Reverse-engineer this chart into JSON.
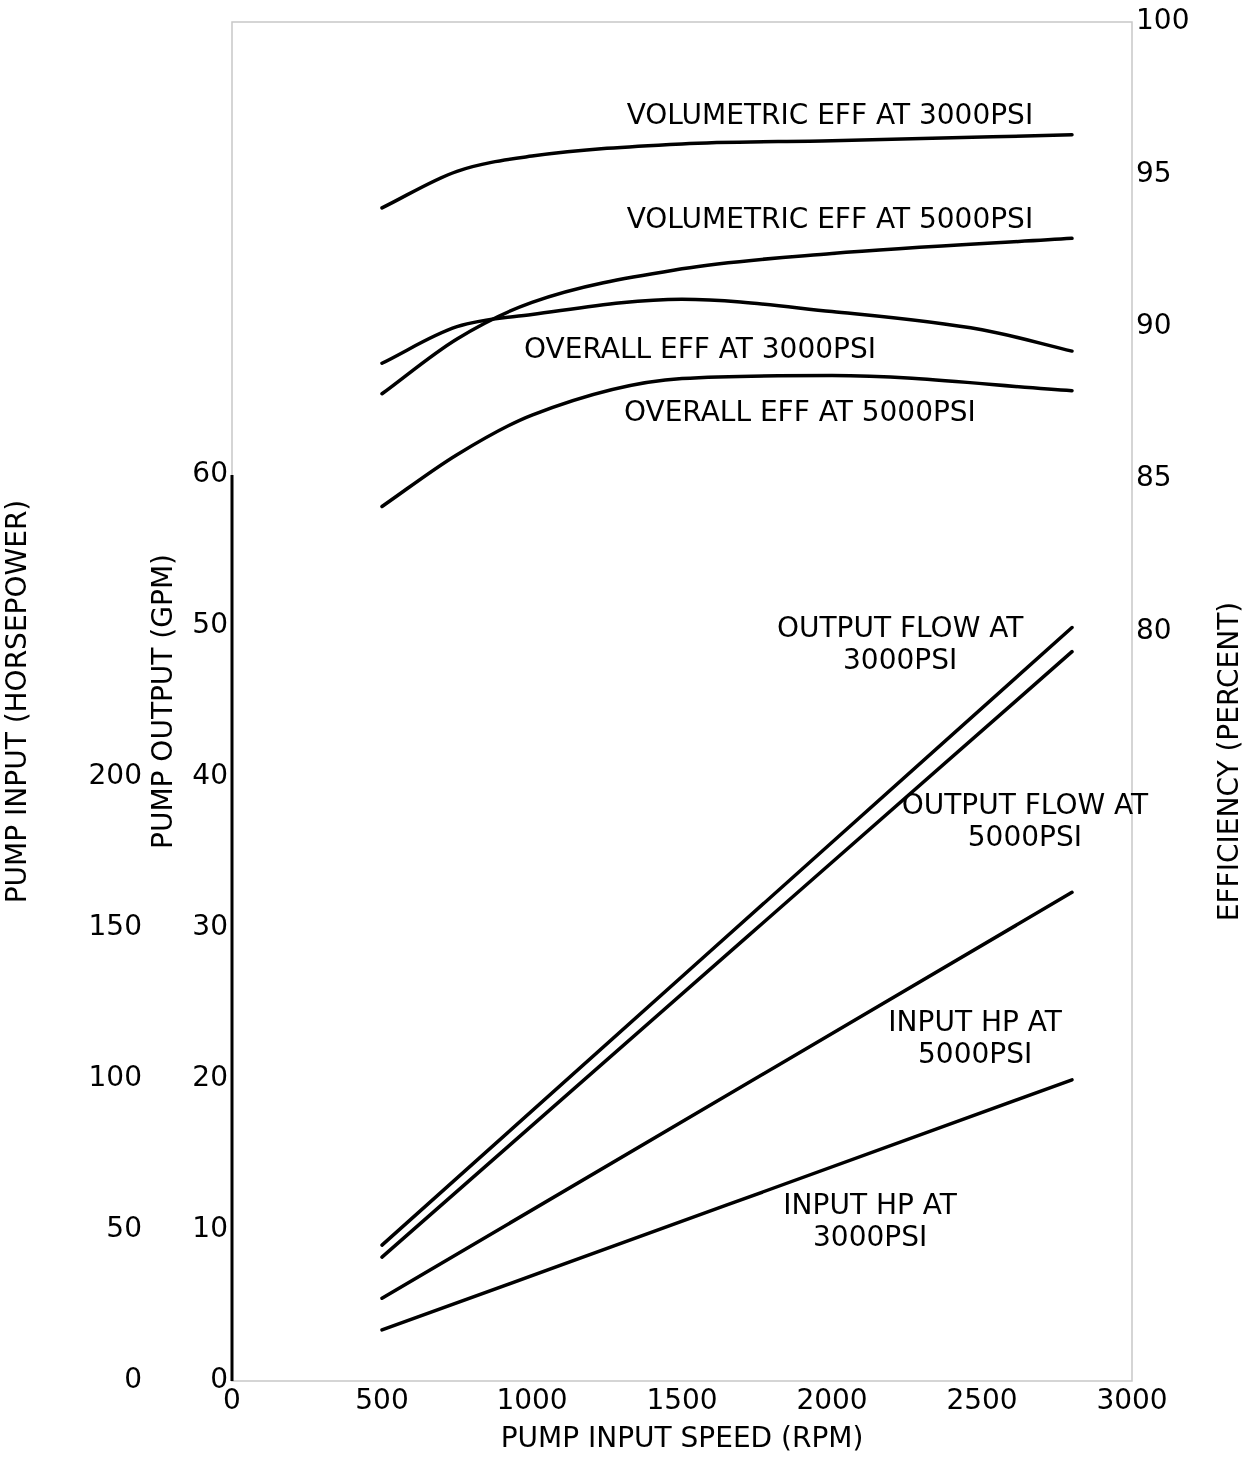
{
  "chart_data": {
    "type": "line",
    "xlabel": "PUMP INPUT SPEED (RPM)",
    "ylabel": "PUMP OUTPUT (GPM)",
    "y2label": "EFFICIENCY (PERCENT)",
    "y3label": "PUMP INPUT (HORSEPOWER)",
    "xlim": [
      0,
      3000
    ],
    "xticks": [
      0,
      500,
      1000,
      1500,
      2000,
      2500,
      3000
    ],
    "ylim": [
      0,
      90
    ],
    "yticks": [
      0,
      10,
      20,
      30,
      40,
      50,
      60
    ],
    "y2lim": [
      55.4,
      100
    ],
    "y2ticks": [
      80,
      85,
      90,
      95,
      100
    ],
    "y3lim": [
      0,
      450
    ],
    "y3ticks": [
      0,
      50,
      100,
      150,
      200
    ],
    "grid": false,
    "legend": false,
    "marker": "none",
    "line_style": "solid",
    "series": [
      {
        "name": "VOLUMETRIC EFF AT 3000PSI",
        "color": "#000000",
        "axis": "y2",
        "x": [
          500,
          750,
          1000,
          1500,
          2000,
          2800
        ],
        "values": [
          93.9,
          95.1,
          95.6,
          96.0,
          96.1,
          96.3
        ]
      },
      {
        "name": "VOLUMETRIC EFF AT 5000PSI",
        "color": "#000000",
        "axis": "y2",
        "x": [
          500,
          750,
          1000,
          1500,
          2000,
          2800
        ],
        "values": [
          87.8,
          89.6,
          90.8,
          91.9,
          92.4,
          92.9
        ]
      },
      {
        "name": "OVERALL EFF AT 3000PSI",
        "color": "#000000",
        "axis": "y2",
        "x": [
          500,
          750,
          1000,
          1500,
          2000,
          2500,
          2800
        ],
        "values": [
          88.8,
          90.0,
          90.4,
          90.9,
          90.5,
          89.9,
          89.2
        ]
      },
      {
        "name": "OVERALL EFF AT 5000PSI",
        "color": "#000000",
        "axis": "y2",
        "x": [
          500,
          750,
          1000,
          1500,
          2000,
          2800
        ],
        "values": [
          84.1,
          85.8,
          87.1,
          88.3,
          88.4,
          87.9
        ]
      },
      {
        "name": "OUTPUT FLOW AT 3000PSI",
        "color": "#000000",
        "x": [
          500,
          2800
        ],
        "values": [
          9.0,
          49.9
        ]
      },
      {
        "name": "OUTPUT FLOW AT 5000PSI",
        "color": "#000000",
        "x": [
          500,
          2800
        ],
        "values": [
          8.2,
          48.3
        ]
      },
      {
        "name": "INPUT HP AT 5000PSI",
        "color": "#000000",
        "axis": "y3",
        "x": [
          500,
          2800
        ],
        "values": [
          27.4,
          161.8
        ]
      },
      {
        "name": "INPUT HP AT 3000PSI",
        "color": "#000000",
        "axis": "y3",
        "x": [
          500,
          2800
        ],
        "values": [
          16.9,
          99.7
        ]
      }
    ]
  }
}
